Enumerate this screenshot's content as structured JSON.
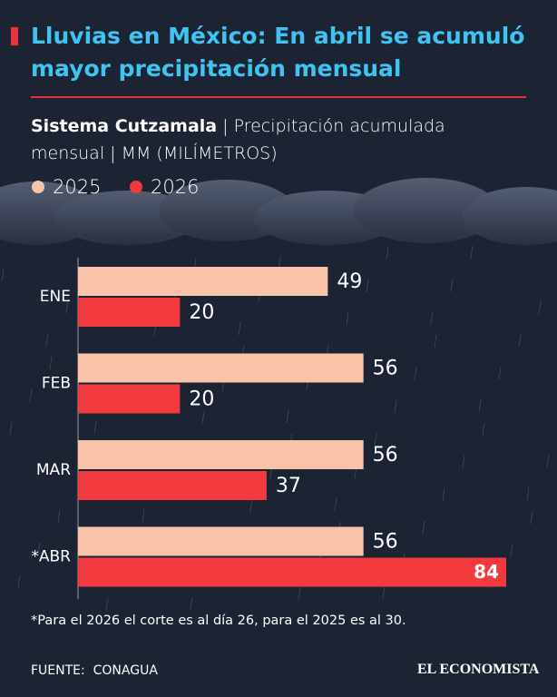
{
  "chart_data": {
    "type": "bar",
    "orientation": "horizontal",
    "title": "Lluvias en México: En abril se acumuló mayor precipitación mensual",
    "subtitle": "Sistema Cutzamala",
    "subtitle_detail": "| Precipitación acumulada mensual | MM (MILÍMETROS)",
    "categories": [
      "ENE",
      "FEB",
      "MAR",
      "*ABR"
    ],
    "series": [
      {
        "name": "2025",
        "color": "#f9c3aa",
        "values": [
          49,
          56,
          56,
          56
        ]
      },
      {
        "name": "2026",
        "color": "#f23a3c",
        "values": [
          20,
          20,
          37,
          84
        ]
      }
    ],
    "xlim": [
      0,
      84
    ],
    "footnote": "*Para el 2026 el corte es al día 26, para el 2025 es al 30.",
    "source": "FUENTE:  CONAGUA",
    "brand": "EL ECONOMISTA"
  }
}
